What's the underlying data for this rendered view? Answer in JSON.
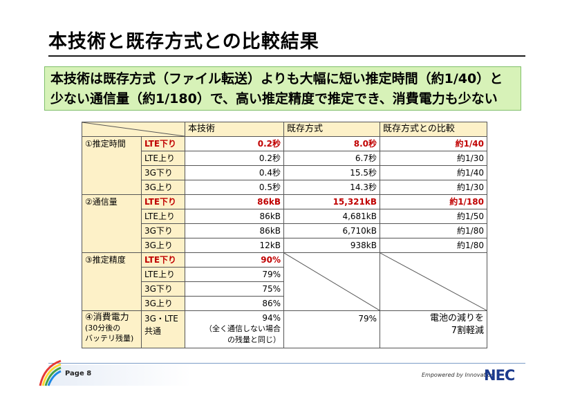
{
  "title": "本技術と既存方式との比較結果",
  "summary": {
    "line1": "本技術は既存方式（ファイル転送）よりも大幅に短い推定時間（約1/40）と",
    "line2": "少ない通信量（約1/180）で、高い推定精度で推定でき、消費電力も少ない"
  },
  "table": {
    "headers": [
      "本技術",
      "既存方式",
      "既存方式との比較"
    ],
    "time": {
      "category": "①推定時間",
      "rows": [
        {
          "sub": "LTE下り",
          "tech": "0.2秒",
          "existing": "8.0秒",
          "compare": "約1/40"
        },
        {
          "sub": "LTE上り",
          "tech": "0.2秒",
          "existing": "6.7秒",
          "compare": "約1/30"
        },
        {
          "sub": "3G下り",
          "tech": "0.4秒",
          "existing": "15.5秒",
          "compare": "約1/40"
        },
        {
          "sub": "3G上り",
          "tech": "0.5秒",
          "existing": "14.3秒",
          "compare": "約1/30"
        }
      ]
    },
    "traffic": {
      "category": "②通信量",
      "rows": [
        {
          "sub": "LTE下り",
          "tech": "86kB",
          "existing": "15,321kB",
          "compare": "約1/180"
        },
        {
          "sub": "LTE上り",
          "tech": "86kB",
          "existing": "4,681kB",
          "compare": "約1/50"
        },
        {
          "sub": "3G下り",
          "tech": "86kB",
          "existing": "6,710kB",
          "compare": "約1/80"
        },
        {
          "sub": "3G上り",
          "tech": "12kB",
          "existing": "938kB",
          "compare": "約1/80"
        }
      ]
    },
    "accuracy": {
      "category": "③推定精度",
      "rows": [
        {
          "sub": "LTE下り",
          "tech": "90%"
        },
        {
          "sub": "LTE上り",
          "tech": "79%"
        },
        {
          "sub": "3G下り",
          "tech": "75%"
        },
        {
          "sub": "3G上り",
          "tech": "86%"
        }
      ]
    },
    "power": {
      "category_line1": "④消費電力",
      "category_line2": "(30分後の",
      "category_line3": "バッテリ残量)",
      "sub_line1": "3G・LTE",
      "sub_line2": "共通",
      "tech_line1": "94%",
      "tech_line2": "（全く通信しない場合",
      "tech_line3": "の残量と同じ）",
      "existing": "79%",
      "compare_line1": "電池の減りを",
      "compare_line2": "7割軽減"
    }
  },
  "footer": {
    "page": "Page 8",
    "tagline": "Empowered by Innovation",
    "logo": "NEC"
  },
  "colors": {
    "highlight_red": "#c00000",
    "summary_green": "#d7f2b8",
    "cell_yellow": "#fdf1c8",
    "nec_blue": "#1b3a8c"
  }
}
